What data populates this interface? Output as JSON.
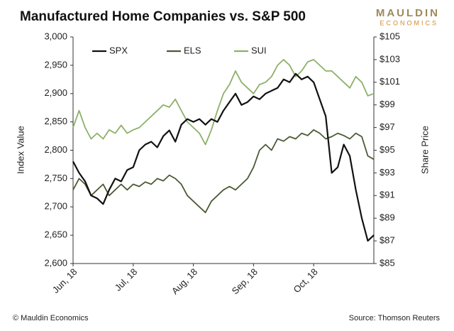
{
  "chart_data": {
    "type": "line",
    "title": "Manufactured Home Companies vs. S&P 500",
    "logo": {
      "top": "MAULDIN",
      "bottom": "ECONOMICS"
    },
    "ylabel": "Index Value",
    "y2label": "Share Price",
    "footer_left": "© Mauldin Economics",
    "footer_right": "Source: Thomson Reuters",
    "legend": "top",
    "categories": [
      "Jun, 18",
      null,
      null,
      null,
      null,
      null,
      null,
      null,
      null,
      null,
      "Jul, 18",
      null,
      null,
      null,
      null,
      null,
      null,
      null,
      null,
      null,
      "Aug, 18",
      null,
      null,
      null,
      null,
      null,
      null,
      null,
      null,
      null,
      "Sep, 18",
      null,
      null,
      null,
      null,
      null,
      null,
      null,
      null,
      null,
      "Oct, 18",
      null,
      null,
      null,
      null,
      null,
      null,
      null,
      null,
      null,
      null
    ],
    "ylim": [
      2600,
      3000
    ],
    "yticks": [
      {
        "value": 2600,
        "label": "2,600"
      },
      {
        "value": 2650,
        "label": "2,650"
      },
      {
        "value": 2700,
        "label": "2,700"
      },
      {
        "value": 2750,
        "label": "2,750"
      },
      {
        "value": 2800,
        "label": "2,800"
      },
      {
        "value": 2850,
        "label": "2,850"
      },
      {
        "value": 2900,
        "label": "2,900"
      },
      {
        "value": 2950,
        "label": "2,950"
      },
      {
        "value": 3000,
        "label": "3,000"
      }
    ],
    "y2lim": [
      85,
      105
    ],
    "y2ticks": [
      {
        "value": 85,
        "label": "$85"
      },
      {
        "value": 87,
        "label": "$87"
      },
      {
        "value": 89,
        "label": "$89"
      },
      {
        "value": 91,
        "label": "$91"
      },
      {
        "value": 93,
        "label": "$93"
      },
      {
        "value": 95,
        "label": "$95"
      },
      {
        "value": 97,
        "label": "$97"
      },
      {
        "value": 99,
        "label": "$99"
      },
      {
        "value": 101,
        "label": "$101"
      },
      {
        "value": 103,
        "label": "$103"
      },
      {
        "value": 105,
        "label": "$105"
      }
    ],
    "series": [
      {
        "name": "SPX",
        "color": "#111111",
        "values": [
          2780,
          2760,
          2745,
          2720,
          2715,
          2705,
          2730,
          2750,
          2745,
          2765,
          2770,
          2800,
          2810,
          2815,
          2805,
          2825,
          2835,
          2815,
          2845,
          2855,
          2850,
          2855,
          2845,
          2855,
          2850,
          2870,
          2885,
          2900,
          2880,
          2885,
          2895,
          2890,
          2900,
          2905,
          2910,
          2925,
          2920,
          2935,
          2925,
          2930,
          2920,
          2890,
          2860,
          2760,
          2770,
          2810,
          2790,
          2730,
          2680,
          2640,
          2650
        ]
      },
      {
        "name": "ELS",
        "color": "#4b5a34",
        "axis": "y2",
        "values": [
          91.5,
          92.5,
          92,
          91,
          91.5,
          92,
          91,
          91.5,
          92,
          91.5,
          92,
          91.8,
          92.2,
          92,
          92.5,
          92.3,
          92.8,
          92.5,
          92,
          91,
          90.5,
          90,
          89.5,
          90.5,
          91,
          91.5,
          91.8,
          91.5,
          92,
          92.5,
          93.5,
          95,
          95.5,
          95,
          96,
          95.8,
          96.2,
          96,
          96.5,
          96.3,
          96.8,
          96.5,
          96,
          96.2,
          96.5,
          96.3,
          96,
          96.5,
          96.2,
          94.5,
          94.2
        ]
      },
      {
        "name": "SUI",
        "color": "#8db06a",
        "axis": "y2",
        "values": [
          97,
          98.5,
          97,
          96,
          96.5,
          96,
          96.8,
          96.5,
          97.2,
          96.5,
          96.8,
          97,
          97.5,
          98,
          98.5,
          99,
          98.8,
          99.5,
          98.5,
          97.5,
          97,
          96.5,
          95.5,
          96.8,
          98.5,
          100,
          100.8,
          102,
          101,
          100.5,
          100,
          100.8,
          101,
          101.5,
          102.5,
          103,
          102.5,
          101.5,
          102,
          102.8,
          103,
          102.5,
          102,
          102,
          101.5,
          101,
          100.5,
          101.5,
          101,
          99.8,
          100
        ]
      }
    ]
  }
}
